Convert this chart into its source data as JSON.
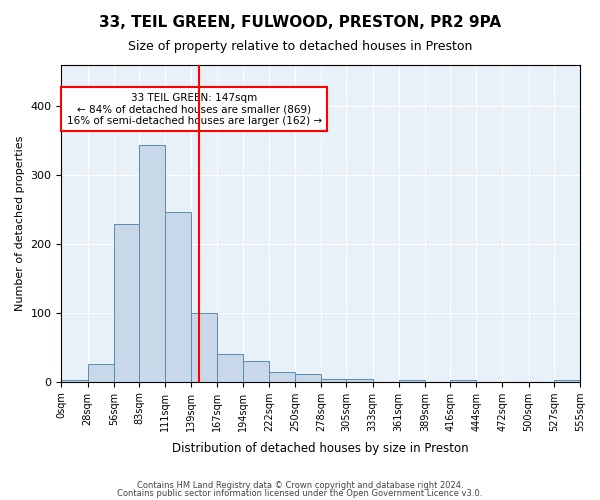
{
  "title": "33, TEIL GREEN, FULWOOD, PRESTON, PR2 9PA",
  "subtitle": "Size of property relative to detached houses in Preston",
  "xlabel": "Distribution of detached houses by size in Preston",
  "ylabel": "Number of detached properties",
  "bar_color": "#c8d8e8",
  "bar_edge_color": "#5a8ab0",
  "background_color": "#e8f0f8",
  "bins": [
    0,
    28,
    56,
    83,
    111,
    139,
    167,
    194,
    222,
    250,
    278,
    305,
    333,
    361,
    389,
    416,
    444,
    472,
    500,
    527,
    555
  ],
  "values": [
    3,
    25,
    229,
    344,
    246,
    100,
    40,
    30,
    14,
    11,
    4,
    4,
    0,
    3,
    0,
    3,
    0,
    0,
    0,
    3
  ],
  "property_value": 147,
  "red_line_x": 147,
  "annotation_title": "33 TEIL GREEN: 147sqm",
  "annotation_line1": "← 84% of detached houses are smaller (869)",
  "annotation_line2": "16% of semi-detached houses are larger (162) →",
  "ylim": [
    0,
    460
  ],
  "tick_labels": [
    "0sqm",
    "28sqm",
    "56sqm",
    "83sqm",
    "111sqm",
    "139sqm",
    "167sqm",
    "194sqm",
    "222sqm",
    "250sqm",
    "278sqm",
    "305sqm",
    "333sqm",
    "361sqm",
    "389sqm",
    "416sqm",
    "444sqm",
    "472sqm",
    "500sqm",
    "527sqm",
    "555sqm"
  ],
  "footer1": "Contains HM Land Registry data © Crown copyright and database right 2024.",
  "footer2": "Contains public sector information licensed under the Open Government Licence v3.0."
}
